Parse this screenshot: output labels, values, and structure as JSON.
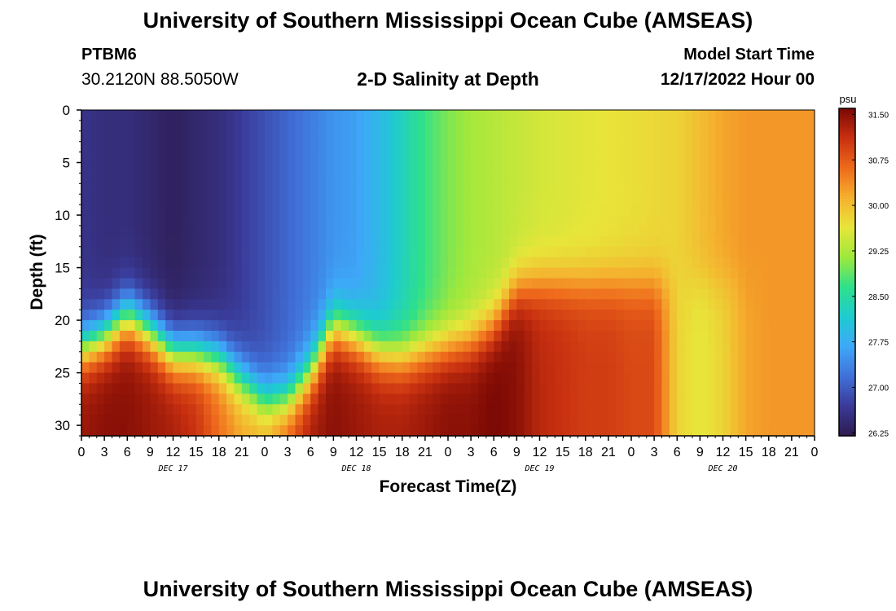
{
  "header": {
    "title": "University of Southern Mississippi Ocean Cube (AMSEAS)",
    "station": "PTBM6",
    "coords": "30.2120N  88.5050W",
    "plot_title": "2-D Salinity at Depth",
    "model_start_label": "Model Start Time",
    "model_start_value": "12/17/2022 Hour 00"
  },
  "footer": {
    "title": "University of Southern Mississippi Ocean Cube (AMSEAS)"
  },
  "colors": {
    "scale": [
      "#2d1b4e",
      "#3a3a98",
      "#4070d8",
      "#3ea8f8",
      "#1ecbd0",
      "#2fe08a",
      "#9ee83c",
      "#e8e53a",
      "#f5b02e",
      "#ef6a1c",
      "#c83010",
      "#7a0804"
    ]
  },
  "chart_data": {
    "type": "heatmap",
    "title": "2-D Salinity at Depth",
    "xlabel": "Forecast Time(Z)",
    "ylabel": "Depth (ft)",
    "x_ticks": [
      "0",
      "3",
      "6",
      "9",
      "12",
      "15",
      "18",
      "21",
      "0",
      "3",
      "6",
      "9",
      "12",
      "15",
      "18",
      "21",
      "0",
      "3",
      "6",
      "9",
      "12",
      "15",
      "18",
      "21",
      "0",
      "3",
      "6",
      "9",
      "12",
      "15",
      "18",
      "21",
      "0"
    ],
    "x_range_hours": [
      0,
      96
    ],
    "day_labels": [
      {
        "label": "DEC 17",
        "hour": 12
      },
      {
        "label": "DEC 18",
        "hour": 36
      },
      {
        "label": "DEC 19",
        "hour": 60
      },
      {
        "label": "DEC 20",
        "hour": 84
      }
    ],
    "y_ticks": [
      "0",
      "5",
      "10",
      "15",
      "20",
      "25",
      "30"
    ],
    "y_range_ft": [
      0,
      31
    ],
    "colorbar": {
      "unit": "psu",
      "ticks": [
        "31.50",
        "30.75",
        "30.00",
        "29.25",
        "28.50",
        "27.75",
        "27.00",
        "26.25"
      ],
      "range": [
        26.2,
        31.6
      ]
    },
    "description": "Salinity (psu) by depth (ft) and forecast hour",
    "transect": {
      "hours": [
        0,
        3,
        6,
        9,
        12,
        15,
        18,
        21,
        24,
        27,
        30,
        33,
        36,
        39,
        42,
        45,
        48,
        51,
        54,
        57,
        60,
        63,
        66,
        69,
        72,
        75,
        78,
        81,
        84,
        87,
        90,
        93,
        96
      ],
      "halocline_depth_ft": [
        22.5,
        21.5,
        19.5,
        21.0,
        23.0,
        23.0,
        23.5,
        25.5,
        27.5,
        27.5,
        25.0,
        20.5,
        21.5,
        23.0,
        23.5,
        23.0,
        22.5,
        22.0,
        20.5,
        17.0,
        16.5,
        16.5,
        16.5,
        16.5,
        16.5,
        16.5,
        16.5,
        16.5,
        16.5,
        16.5,
        16.5,
        16.5,
        16.5
      ],
      "surface_salinity": [
        26.6,
        26.5,
        26.5,
        26.4,
        26.3,
        26.4,
        26.5,
        26.7,
        26.9,
        27.1,
        27.3,
        27.5,
        27.6,
        27.9,
        28.3,
        28.7,
        29.0,
        29.2,
        29.3,
        29.4,
        29.5,
        29.55,
        29.6,
        29.65,
        29.7,
        29.75,
        29.8,
        30.0,
        30.2,
        30.3,
        30.3,
        30.3,
        30.3
      ],
      "bottom_salinity": [
        31.4,
        31.5,
        31.5,
        31.4,
        31.3,
        31.1,
        30.6,
        30.2,
        30.2,
        30.8,
        31.3,
        31.5,
        31.4,
        31.3,
        31.3,
        31.4,
        31.5,
        31.5,
        31.6,
        31.5,
        31.2,
        31.1,
        31.0,
        31.0,
        30.9,
        30.9,
        29.8,
        29.6,
        29.8,
        30.2,
        30.3,
        30.3,
        30.3
      ]
    }
  }
}
